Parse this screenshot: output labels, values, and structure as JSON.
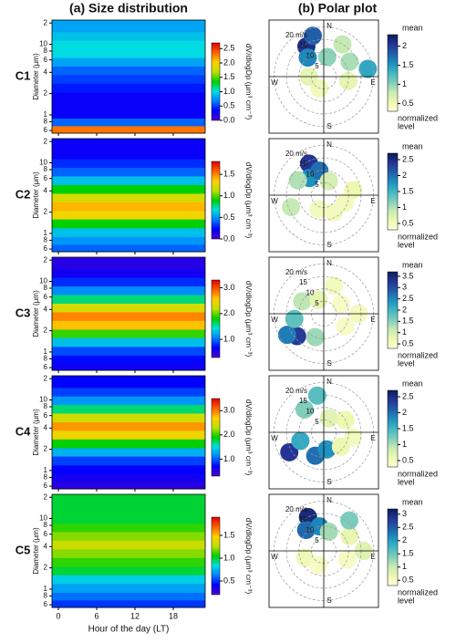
{
  "titles": [
    "(a) Size distribution",
    "(b) Polar plot"
  ],
  "chart_data": {
    "type": "heatmap-polar",
    "y_label": "Diameter (µm)",
    "x_label": "Hour of the day (LT)",
    "xlim": [
      -1,
      23
    ],
    "xticks": [
      0,
      6,
      12,
      18
    ],
    "ylim": [
      0.55,
      22
    ],
    "log_y": true,
    "yticks": [
      {
        "value": 20,
        "label": "2"
      },
      10,
      8,
      6,
      4,
      2,
      1,
      {
        "value": 0.8,
        "label": "8"
      },
      {
        "value": 0.6,
        "label": "6"
      }
    ],
    "size_bins": [
      0.55,
      0.7,
      0.9,
      1.2,
      1.6,
      2.1,
      2.8,
      3.7,
      4.9,
      6.5,
      8.6,
      11.4,
      15,
      22
    ],
    "colorbar_label": "dV/dlogDp (µm³ cm⁻³)",
    "colormap": [
      "#5000c8",
      "#0000ff",
      "#0080ff",
      "#00e0e0",
      "#00d000",
      "#c0e000",
      "#ffd000",
      "#ff6000",
      "#e00000"
    ],
    "polar_colormap": [
      "#ffffd9",
      "#edf8b1",
      "#c7e9b4",
      "#7fcdbb",
      "#41b6c4",
      "#1d91c0",
      "#225ea8",
      "#253494",
      "#081d58"
    ],
    "polar": {
      "directions": [
        "N",
        "E",
        "S",
        "W"
      ],
      "rlim": [
        0,
        22
      ],
      "rings": [
        5,
        10,
        15,
        {
          "value": 20,
          "label": "20 m/s"
        }
      ],
      "mean_label": "mean",
      "normalized_label": [
        "normalized",
        "level"
      ]
    },
    "panels": [
      {
        "name": "C1",
        "profile": [
          2.3,
          0.6,
          0.3,
          0.3,
          0.3,
          0.4,
          0.5,
          0.6,
          0.8,
          1.0,
          1.0,
          0.9,
          0.8
        ],
        "clim": [
          0,
          2.7
        ],
        "cticks": [
          {
            "value": 0,
            "label": "0.0"
          },
          0.5,
          {
            "value": 1,
            "label": "1.0"
          },
          1.5,
          {
            "value": 2,
            "label": "2.0"
          },
          2.5
        ],
        "polar_clim": [
          0.3,
          2.3
        ],
        "polar_cticks": [
          0.5,
          1,
          1.5,
          2
        ],
        "polar_points": [
          [
            330,
            14,
            2.1
          ],
          [
            320,
            10,
            1.6
          ],
          [
            345,
            17,
            1.8
          ],
          [
            10,
            8,
            1.0
          ],
          [
            60,
            12,
            0.9
          ],
          [
            80,
            18,
            1.4
          ],
          [
            100,
            10,
            0.6
          ],
          [
            200,
            5,
            0.5
          ],
          [
            270,
            6,
            0.6
          ],
          [
            30,
            15,
            0.8
          ]
        ]
      },
      {
        "name": "C2",
        "profile": [
          0.4,
          0.5,
          0.6,
          0.9,
          1.3,
          1.4,
          1.2,
          0.9,
          0.6,
          0.4,
          0.3,
          0.2,
          0.2
        ],
        "clim": [
          0,
          1.8
        ],
        "cticks": [
          {
            "value": 0,
            "label": "0.0"
          },
          0.5,
          {
            "value": 1,
            "label": "1.0"
          },
          1.5
        ],
        "polar_clim": [
          0.3,
          2.7
        ],
        "polar_cticks": [
          0.5,
          1,
          1.5,
          2,
          2.5
        ],
        "polar_points": [
          [
            335,
            14,
            2.4
          ],
          [
            320,
            9,
            1.8
          ],
          [
            350,
            10,
            2.0
          ],
          [
            300,
            12,
            1.0
          ],
          [
            20,
            6,
            0.8
          ],
          [
            80,
            12,
            0.6
          ],
          [
            110,
            9,
            0.5
          ],
          [
            250,
            14,
            0.9
          ],
          [
            200,
            6,
            0.5
          ],
          [
            150,
            8,
            0.5
          ]
        ]
      },
      {
        "name": "C3",
        "profile": [
          0.6,
          0.7,
          0.9,
          1.3,
          1.9,
          2.6,
          2.8,
          2.3,
          1.6,
          1.1,
          0.8,
          0.6,
          0.5
        ],
        "clim": [
          0.3,
          3.3
        ],
        "cticks": [
          {
            "value": 1,
            "label": "1.0"
          },
          {
            "value": 2,
            "label": "2.0"
          },
          {
            "value": 3,
            "label": "3.0"
          }
        ],
        "polar_clim": [
          0.3,
          3.7
        ],
        "polar_cticks": [
          0.5,
          1,
          1.5,
          2,
          2.5,
          3,
          3.5
        ],
        "polar_points": [
          [
            230,
            14,
            3.2
          ],
          [
            240,
            17,
            2.6
          ],
          [
            260,
            12,
            1.8
          ],
          [
            300,
            10,
            1.2
          ],
          [
            340,
            6,
            0.8
          ],
          [
            60,
            8,
            0.5
          ],
          [
            90,
            14,
            0.6
          ],
          [
            120,
            10,
            0.5
          ],
          [
            200,
            10,
            1.4
          ],
          [
            20,
            12,
            0.6
          ]
        ]
      },
      {
        "name": "C4",
        "profile": [
          0.5,
          0.6,
          0.7,
          0.9,
          1.3,
          1.9,
          2.6,
          2.9,
          2.4,
          1.7,
          1.2,
          0.9,
          0.7
        ],
        "clim": [
          0.3,
          3.5
        ],
        "cticks": [
          {
            "value": 1,
            "label": "1.0"
          },
          {
            "value": 2,
            "label": "2.0"
          },
          {
            "value": 3,
            "label": "3.0"
          }
        ],
        "polar_clim": [
          0.3,
          2.7
        ],
        "polar_cticks": [
          0.5,
          1,
          1.5,
          2,
          2.5
        ],
        "polar_points": [
          [
            240,
            16,
            2.4
          ],
          [
            200,
            10,
            2.0
          ],
          [
            170,
            7,
            1.8
          ],
          [
            250,
            10,
            1.6
          ],
          [
            320,
            12,
            1.2
          ],
          [
            350,
            15,
            1.4
          ],
          [
            60,
            10,
            0.6
          ],
          [
            100,
            12,
            0.5
          ],
          [
            130,
            9,
            0.6
          ],
          [
            20,
            6,
            0.7
          ]
        ]
      },
      {
        "name": "C5",
        "profile": [
          0.5,
          0.6,
          0.7,
          0.8,
          1.0,
          1.1,
          1.2,
          1.3,
          1.2,
          1.1,
          1.0,
          1.0,
          1.0
        ],
        "clim": [
          0.2,
          1.9
        ],
        "cticks": [
          0.5,
          {
            "value": 1,
            "label": "1.0"
          },
          1.5
        ],
        "polar_clim": [
          0.3,
          3.2
        ],
        "polar_cticks": [
          0.5,
          1,
          1.5,
          2,
          2.5,
          3
        ],
        "polar_points": [
          [
            335,
            15,
            3.0
          ],
          [
            320,
            11,
            2.4
          ],
          [
            350,
            10,
            2.2
          ],
          [
            15,
            8,
            1.2
          ],
          [
            60,
            12,
            0.7
          ],
          [
            90,
            16,
            0.8
          ],
          [
            110,
            10,
            0.5
          ],
          [
            250,
            8,
            0.6
          ],
          [
            200,
            6,
            0.5
          ],
          [
            40,
            16,
            1.4
          ]
        ]
      }
    ]
  }
}
